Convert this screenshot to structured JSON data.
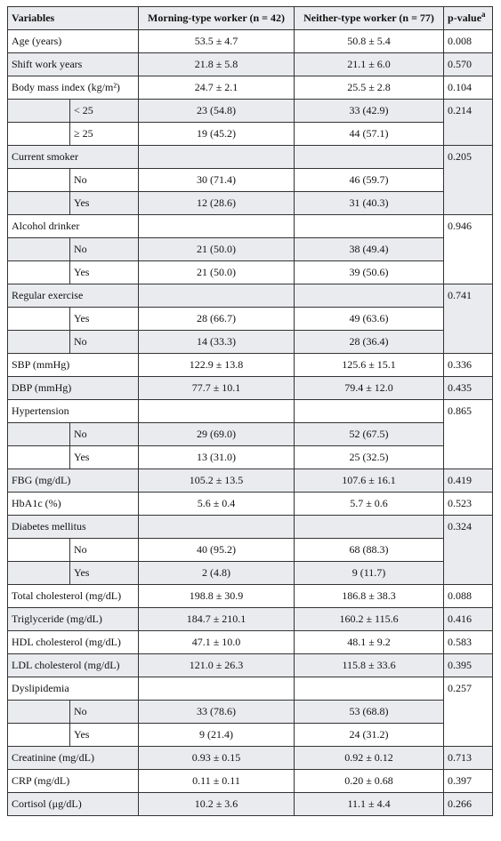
{
  "header": {
    "variables": "Variables",
    "morning": "Morning-type worker (n = 42)",
    "neither": "Neither-type worker (n = 77)",
    "pvalue": "p-value",
    "pvalue_note": "a"
  },
  "rows": [
    {
      "label": "Age (years)",
      "morning": "53.5 ± 4.7",
      "neither": "50.8 ± 5.4",
      "p": "0.008"
    },
    {
      "label": "Shift work years",
      "morning": "21.8 ± 5.8",
      "neither": "21.1 ± 6.0",
      "p": "0.570"
    },
    {
      "label": "Body mass index (kg/m²)",
      "morning": "24.7 ± 2.1",
      "neither": "25.5 ± 2.8",
      "p": "0.104"
    },
    {
      "p": "0.214",
      "sub": [
        {
          "label": "< 25",
          "morning": "23 (54.8)",
          "neither": "33 (42.9)"
        },
        {
          "label": "≥ 25",
          "morning": "19 (45.2)",
          "neither": "44 (57.1)"
        }
      ]
    },
    {
      "label": "Current smoker",
      "p": "0.205",
      "sub": [
        {
          "label": "No",
          "morning": "30 (71.4)",
          "neither": "46 (59.7)"
        },
        {
          "label": "Yes",
          "morning": "12 (28.6)",
          "neither": "31 (40.3)"
        }
      ]
    },
    {
      "label": "Alcohol drinker",
      "p": "0.946",
      "sub": [
        {
          "label": "No",
          "morning": "21 (50.0)",
          "neither": "38 (49.4)"
        },
        {
          "label": "Yes",
          "morning": "21 (50.0)",
          "neither": "39 (50.6)"
        }
      ]
    },
    {
      "label": "Regular exercise",
      "p": "0.741",
      "sub": [
        {
          "label": "Yes",
          "morning": "28 (66.7)",
          "neither": "49 (63.6)"
        },
        {
          "label": "No",
          "morning": "14 (33.3)",
          "neither": "28 (36.4)"
        }
      ]
    },
    {
      "label": "SBP (mmHg)",
      "morning": "122.9 ± 13.8",
      "neither": "125.6 ± 15.1",
      "p": "0.336"
    },
    {
      "label": "DBP (mmHg)",
      "morning": "77.7 ± 10.1",
      "neither": "79.4 ± 12.0",
      "p": "0.435"
    },
    {
      "label": "Hypertension",
      "p": "0.865",
      "sub": [
        {
          "label": "No",
          "morning": "29 (69.0)",
          "neither": "52 (67.5)"
        },
        {
          "label": "Yes",
          "morning": "13 (31.0)",
          "neither": "25 (32.5)"
        }
      ]
    },
    {
      "label": "FBG (mg/dL)",
      "morning": "105.2 ± 13.5",
      "neither": "107.6 ± 16.1",
      "p": "0.419"
    },
    {
      "label": "HbA1c (%)",
      "morning": "5.6 ± 0.4",
      "neither": "5.7 ± 0.6",
      "p": "0.523"
    },
    {
      "label": "Diabetes mellitus",
      "p": "0.324",
      "sub": [
        {
          "label": "No",
          "morning": "40 (95.2)",
          "neither": "68 (88.3)"
        },
        {
          "label": "Yes",
          "morning": "2 (4.8)",
          "neither": "9 (11.7)"
        }
      ]
    },
    {
      "label": "Total cholesterol (mg/dL)",
      "morning": "198.8 ± 30.9",
      "neither": "186.8 ± 38.3",
      "p": "0.088"
    },
    {
      "label": "Triglyceride (mg/dL)",
      "morning": "184.7 ± 210.1",
      "neither": "160.2 ± 115.6",
      "p": "0.416"
    },
    {
      "label": "HDL cholesterol (mg/dL)",
      "morning": "47.1 ± 10.0",
      "neither": "48.1 ± 9.2",
      "p": "0.583"
    },
    {
      "label": "LDL cholesterol (mg/dL)",
      "morning": "121.0 ± 26.3",
      "neither": "115.8 ± 33.6",
      "p": "0.395"
    },
    {
      "label": "Dyslipidemia",
      "p": "0.257",
      "sub": [
        {
          "label": "No",
          "morning": "33 (78.6)",
          "neither": "53 (68.8)"
        },
        {
          "label": "Yes",
          "morning": "9 (21.4)",
          "neither": "24 (31.2)"
        }
      ]
    },
    {
      "label": "Creatinine (mg/dL)",
      "morning": "0.93 ± 0.15",
      "neither": "0.92 ± 0.12",
      "p": "0.713"
    },
    {
      "label": "CRP (mg/dL)",
      "morning": "0.11 ± 0.11",
      "neither": "0.20 ± 0.68",
      "p": "0.397"
    },
    {
      "label": "Cortisol (μg/dL)",
      "morning": "10.2 ± 3.6",
      "neither": "11.1 ± 4.4",
      "p": "0.266"
    }
  ]
}
